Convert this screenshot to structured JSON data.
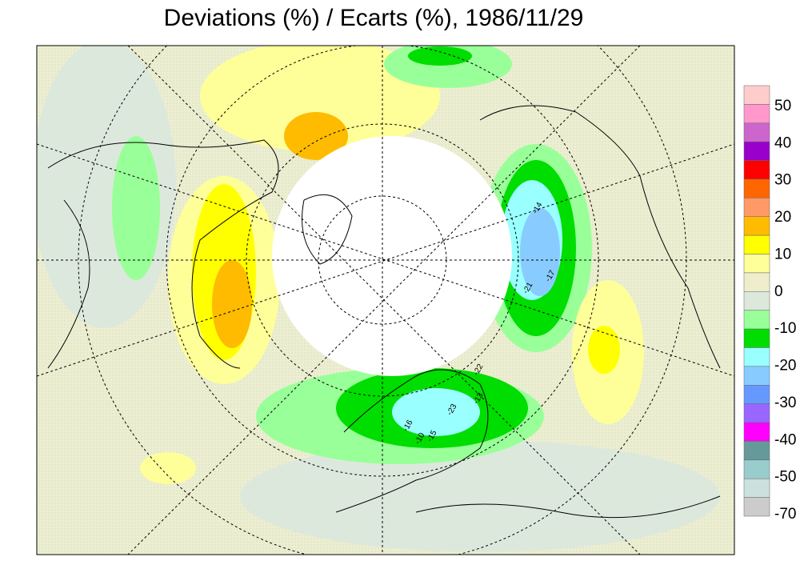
{
  "header": {
    "title": "Deviations (%) / Ecarts (%), 1986/11/29"
  },
  "legend": {
    "labels": [
      "50",
      "40",
      "30",
      "20",
      "10",
      "0",
      "-10",
      "-20",
      "-30",
      "-40",
      "-50",
      "-70"
    ],
    "colors": [
      "#ffcccc",
      "#ff99cc",
      "#cc66cc",
      "#9900cc",
      "#ff0000",
      "#ff6600",
      "#ff9966",
      "#ffbb00",
      "#ffff00",
      "#ffff99",
      "#eeeecc",
      "#dde8dd",
      "#99ff99",
      "#00dd00",
      "#99ffff",
      "#88ccff",
      "#6699ff",
      "#9966ff",
      "#ff00ff",
      "#669999",
      "#99cccc",
      "#cce0dd",
      "#cccccc"
    ]
  },
  "map": {
    "contour_labels": [
      "-21",
      "-17",
      "-14",
      "-22",
      "-23",
      "-15",
      "-13",
      "-16",
      "-10"
    ]
  }
}
